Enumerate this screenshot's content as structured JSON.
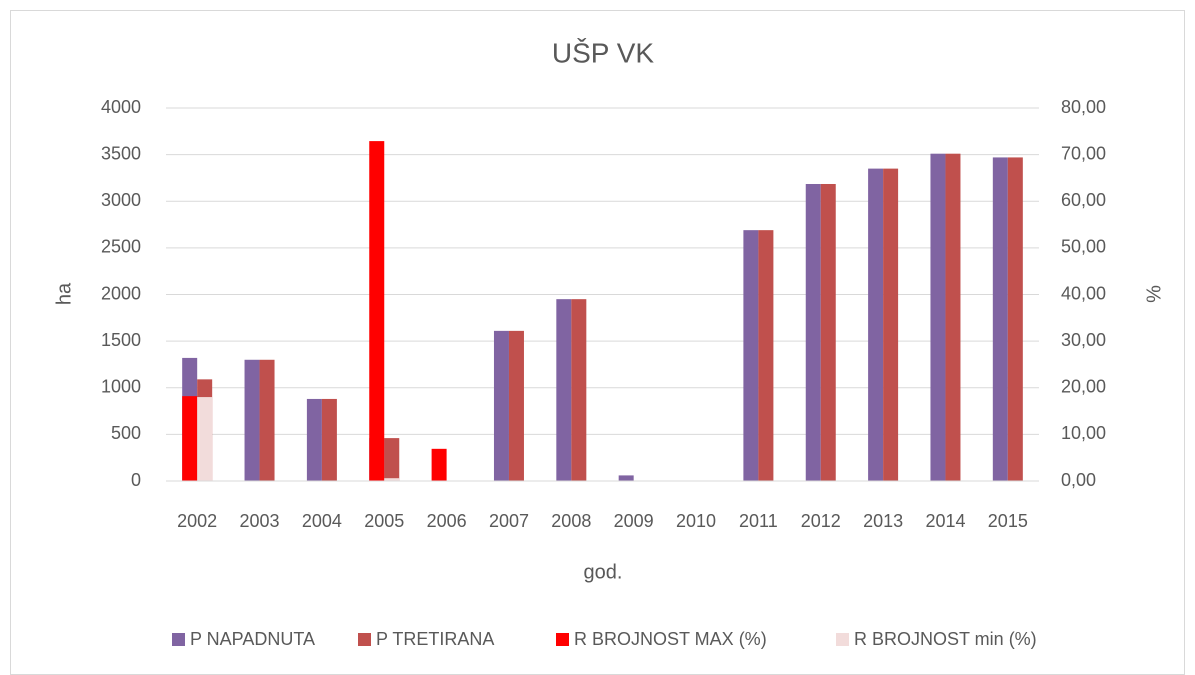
{
  "chart_data": {
    "type": "bar",
    "title": "UŠP VK",
    "xlabel": "god.",
    "ylabel": "ha",
    "y2label": "%",
    "categories": [
      "2002",
      "2003",
      "2004",
      "2005",
      "2006",
      "2007",
      "2008",
      "2009",
      "2010",
      "2011",
      "2012",
      "2013",
      "2014",
      "2015"
    ],
    "series": [
      {
        "name": "P NAPADNUTA",
        "color": "#8064a2",
        "values": [
          1320,
          1300,
          880,
          460,
          0,
          1610,
          1950,
          60,
          0,
          2690,
          3185,
          3350,
          3510,
          3470
        ]
      },
      {
        "name": "P TRETIRANA",
        "color": "#c0504d",
        "values": [
          1090,
          1300,
          880,
          460,
          0,
          1610,
          1950,
          0,
          0,
          2690,
          3185,
          3350,
          3510,
          3470
        ]
      },
      {
        "name": "R BROJNOST MAX (%)",
        "color": "#ff0000",
        "axis": "y2",
        "values": [
          18.2,
          null,
          null,
          72.9,
          6.9,
          null,
          null,
          null,
          null,
          null,
          null,
          null,
          null,
          null
        ]
      },
      {
        "name": "R BROJNOST min (%)",
        "color": "#f2dcdb",
        "axis": "y2",
        "values": [
          18.0,
          null,
          null,
          0.6,
          null,
          null,
          null,
          null,
          null,
          null,
          null,
          null,
          null,
          null
        ]
      }
    ],
    "ylim": [
      0,
      4000
    ],
    "yticks": [
      0,
      500,
      1000,
      1500,
      2000,
      2500,
      3000,
      3500,
      4000
    ],
    "y2lim": [
      0,
      80
    ],
    "y2ticks": [
      {
        "value": 0,
        "label": "0,00"
      },
      {
        "value": 10,
        "label": "10,00"
      },
      {
        "value": 20,
        "label": "20,00"
      },
      {
        "value": 30,
        "label": "30,00"
      },
      {
        "value": 40,
        "label": "40,00"
      },
      {
        "value": 50,
        "label": "50,00"
      },
      {
        "value": 60,
        "label": "60,00"
      },
      {
        "value": 70,
        "label": "70,00"
      },
      {
        "value": 80,
        "label": "80,00"
      }
    ],
    "grid": true,
    "legend": "bottom"
  }
}
